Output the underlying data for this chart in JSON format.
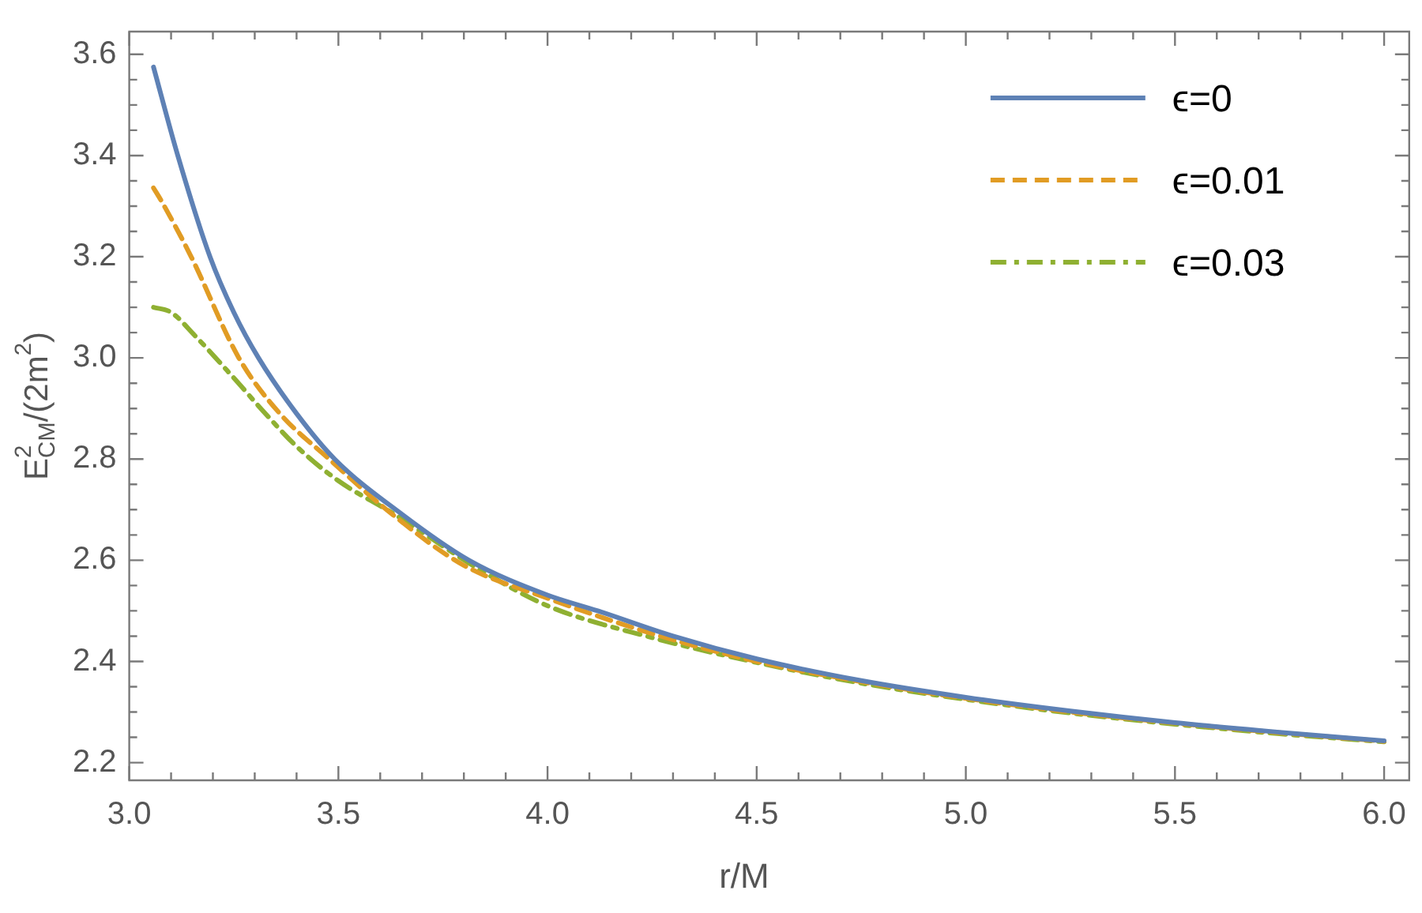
{
  "chart_data": {
    "type": "line",
    "xlabel": "r/M",
    "ylabel": "E$^{2}$$_{CM}$/(2m$^{2}$)",
    "xlim": [
      3.0,
      6.06
    ],
    "ylim": [
      2.165,
      3.645
    ],
    "xticks": [
      {
        "value": 3.0,
        "label": "3.0"
      },
      3.5,
      {
        "value": 4.0,
        "label": "4.0"
      },
      4.5,
      {
        "value": 5.0,
        "label": "5.0"
      },
      5.5,
      {
        "value": 6.0,
        "label": "6.0"
      }
    ],
    "yticks": [
      2.2,
      2.4,
      2.6,
      2.8,
      {
        "value": 3.0,
        "label": "3.0"
      },
      3.2,
      3.4,
      3.6
    ],
    "grid": false,
    "legend": "top right",
    "marker": "none",
    "series": [
      {
        "name": "ϵ=0",
        "color": "#5e81b5",
        "line_style": "solid",
        "x": [
          3.058,
          3.116,
          3.193,
          3.25,
          3.309,
          3.4,
          3.491,
          3.65,
          3.812,
          4.0,
          4.12,
          4.3,
          4.5,
          4.75,
          5.0,
          5.25,
          5.5,
          5.75,
          6.0
        ],
        "values": [
          3.575,
          3.4,
          3.2,
          3.09,
          3.0,
          2.89,
          2.8,
          2.692,
          2.6,
          2.531,
          2.5,
          2.45,
          2.405,
          2.362,
          2.329,
          2.302,
          2.279,
          2.26,
          2.243
        ]
      },
      {
        "name": "ϵ=0.01",
        "color": "#e19c24",
        "line_style": "dashed",
        "x": [
          3.058,
          3.077,
          3.148,
          3.262,
          3.36,
          3.478,
          3.63,
          3.8,
          4.0,
          4.25,
          4.5,
          4.75,
          5.0,
          5.25,
          5.5,
          5.75,
          6.0
        ],
        "values": [
          3.336,
          3.31,
          3.2,
          3.0,
          2.89,
          2.8,
          2.69,
          2.59,
          2.525,
          2.455,
          2.4,
          2.36,
          2.327,
          2.3,
          2.278,
          2.259,
          2.242
        ]
      },
      {
        "name": "ϵ=0.03",
        "color": "#8fb032",
        "line_style": "dashdot",
        "x": [
          3.058,
          3.1,
          3.157,
          3.246,
          3.32,
          3.4,
          3.5,
          3.632,
          3.839,
          4.0,
          4.25,
          4.5,
          4.75,
          5.0,
          5.25,
          5.5,
          5.75,
          6.0
        ],
        "values": [
          3.1,
          3.09,
          3.044,
          2.964,
          2.895,
          2.825,
          2.757,
          2.692,
          2.581,
          2.51,
          2.447,
          2.398,
          2.357,
          2.325,
          2.298,
          2.276,
          2.257,
          2.241
        ]
      }
    ]
  }
}
